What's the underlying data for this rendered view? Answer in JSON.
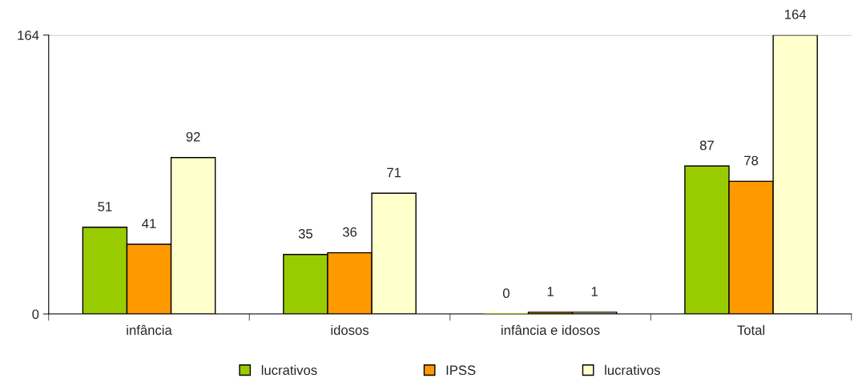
{
  "chart_data": {
    "type": "bar",
    "categories": [
      "infância",
      "idosos",
      "infância e idosos",
      "Total"
    ],
    "series": [
      {
        "name": "lucrativos",
        "color": "#99cc00",
        "values": [
          51,
          35,
          0,
          87
        ]
      },
      {
        "name": "IPSS",
        "color": "#ff9900",
        "values": [
          41,
          36,
          1,
          78
        ]
      },
      {
        "name": "lucrativos",
        "color": "#ffffcc",
        "values": [
          92,
          71,
          1,
          164
        ]
      }
    ],
    "ylim": [
      0,
      164
    ],
    "yticks": [
      0,
      164
    ],
    "grid": "y",
    "legend": "bottom",
    "data_labels": true
  }
}
